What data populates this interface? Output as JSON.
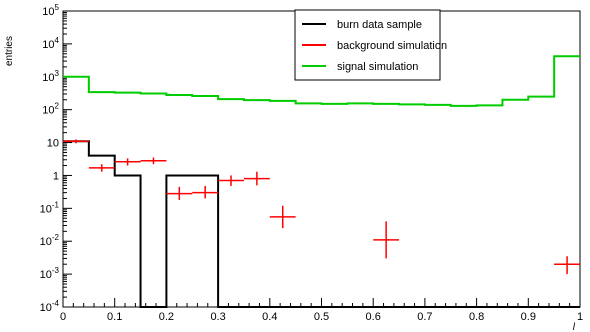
{
  "chart_data": {
    "type": "line",
    "title": "",
    "xlabel": "l",
    "ylabel": "entries",
    "xlim": [
      0,
      1
    ],
    "ylim": [
      0.0001,
      100000
    ],
    "yscale": "log",
    "grid": false,
    "legend_position": "top-center",
    "x_ticks": [
      "0",
      "0.1",
      "0.2",
      "0.3",
      "0.4",
      "0.5",
      "0.6",
      "0.7",
      "0.8",
      "0.9",
      "1"
    ],
    "y_ticks": [
      {
        "base": "10",
        "exp": "-4"
      },
      {
        "base": "10",
        "exp": "-3"
      },
      {
        "base": "10",
        "exp": "-2"
      },
      {
        "base": "10",
        "exp": "-1"
      },
      {
        "base": "1",
        "exp": ""
      },
      {
        "base": "10",
        "exp": ""
      },
      {
        "base": "10",
        "exp": "2"
      },
      {
        "base": "10",
        "exp": "3"
      },
      {
        "base": "10",
        "exp": "4"
      },
      {
        "base": "10",
        "exp": "5"
      }
    ],
    "bin_edges": [
      0,
      0.05,
      0.1,
      0.15,
      0.2,
      0.25,
      0.3,
      0.35,
      0.4,
      0.45,
      0.5,
      0.55,
      0.6,
      0.65,
      0.7,
      0.75,
      0.8,
      0.85,
      0.9,
      0.95,
      1.0
    ],
    "series": [
      {
        "name": "burn data sample",
        "color": "#000000",
        "style": "histogram",
        "values": [
          11,
          4,
          1,
          0,
          1,
          1,
          0,
          0,
          0,
          0,
          0,
          0,
          0,
          0,
          0,
          0,
          0,
          0,
          0,
          0
        ]
      },
      {
        "name": "background simulation",
        "color": "#ff0000",
        "style": "error-cross",
        "points": [
          {
            "x": 0.025,
            "y": 11,
            "err_lo": 9.5,
            "err_hi": 12.5
          },
          {
            "x": 0.075,
            "y": 1.7,
            "err_lo": 1.3,
            "err_hi": 2.2
          },
          {
            "x": 0.125,
            "y": 2.6,
            "err_lo": 2.0,
            "err_hi": 3.3
          },
          {
            "x": 0.175,
            "y": 2.8,
            "err_lo": 2.2,
            "err_hi": 3.5
          },
          {
            "x": 0.225,
            "y": 0.28,
            "err_lo": 0.18,
            "err_hi": 0.45
          },
          {
            "x": 0.275,
            "y": 0.3,
            "err_lo": 0.2,
            "err_hi": 0.48
          },
          {
            "x": 0.325,
            "y": 0.7,
            "err_lo": 0.48,
            "err_hi": 1.0
          },
          {
            "x": 0.375,
            "y": 0.8,
            "err_lo": 0.5,
            "err_hi": 1.3
          },
          {
            "x": 0.425,
            "y": 0.055,
            "err_lo": 0.025,
            "err_hi": 0.12
          },
          {
            "x": 0.625,
            "y": 0.011,
            "err_lo": 0.003,
            "err_hi": 0.04
          },
          {
            "x": 0.975,
            "y": 0.002,
            "err_lo": 0.001,
            "err_hi": 0.0035
          }
        ]
      },
      {
        "name": "signal simulation",
        "color": "#00cc00",
        "style": "histogram",
        "values": [
          1000,
          340,
          330,
          310,
          280,
          260,
          210,
          195,
          185,
          155,
          150,
          155,
          150,
          145,
          140,
          130,
          135,
          200,
          250,
          4200
        ]
      }
    ]
  }
}
